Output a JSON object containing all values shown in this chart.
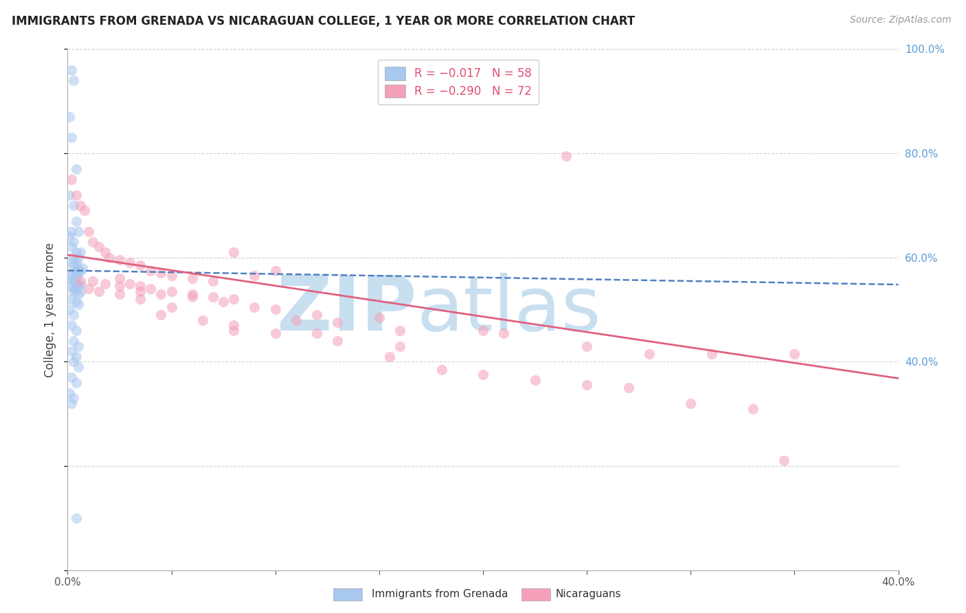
{
  "title": "IMMIGRANTS FROM GRENADA VS NICARAGUAN COLLEGE, 1 YEAR OR MORE CORRELATION CHART",
  "source": "Source: ZipAtlas.com",
  "ylabel": "College, 1 year or more",
  "x_min": 0.0,
  "x_max": 0.4,
  "y_min": 0.0,
  "y_max": 1.0,
  "blue_color": "#a8c8f0",
  "pink_color": "#f4a0b8",
  "blue_line_color": "#5080c0",
  "pink_line_color": "#e06080",
  "blue_scatter_x": [
    0.002,
    0.003,
    0.001,
    0.002,
    0.004,
    0.001,
    0.003,
    0.004,
    0.005,
    0.002,
    0.001,
    0.003,
    0.002,
    0.004,
    0.006,
    0.003,
    0.005,
    0.002,
    0.004,
    0.003,
    0.005,
    0.007,
    0.004,
    0.006,
    0.003,
    0.005,
    0.002,
    0.004,
    0.001,
    0.003,
    0.006,
    0.004,
    0.005,
    0.002,
    0.003,
    0.004,
    0.006,
    0.003,
    0.005,
    0.002,
    0.004,
    0.005,
    0.001,
    0.003,
    0.002,
    0.004,
    0.003,
    0.005,
    0.002,
    0.004,
    0.003,
    0.005,
    0.002,
    0.004,
    0.001,
    0.003,
    0.002,
    0.004
  ],
  "blue_scatter_y": [
    0.96,
    0.94,
    0.87,
    0.83,
    0.77,
    0.72,
    0.7,
    0.67,
    0.65,
    0.65,
    0.64,
    0.63,
    0.62,
    0.61,
    0.61,
    0.6,
    0.6,
    0.59,
    0.59,
    0.585,
    0.58,
    0.58,
    0.575,
    0.575,
    0.57,
    0.57,
    0.565,
    0.565,
    0.56,
    0.555,
    0.55,
    0.55,
    0.545,
    0.545,
    0.54,
    0.54,
    0.535,
    0.535,
    0.53,
    0.52,
    0.515,
    0.51,
    0.5,
    0.49,
    0.47,
    0.46,
    0.44,
    0.43,
    0.42,
    0.41,
    0.4,
    0.39,
    0.37,
    0.36,
    0.34,
    0.33,
    0.32,
    0.1
  ],
  "pink_scatter_x": [
    0.002,
    0.004,
    0.006,
    0.008,
    0.01,
    0.012,
    0.015,
    0.018,
    0.02,
    0.025,
    0.03,
    0.035,
    0.04,
    0.045,
    0.05,
    0.06,
    0.07,
    0.08,
    0.09,
    0.1,
    0.025,
    0.03,
    0.035,
    0.04,
    0.05,
    0.06,
    0.07,
    0.08,
    0.1,
    0.12,
    0.15,
    0.012,
    0.018,
    0.025,
    0.035,
    0.045,
    0.06,
    0.075,
    0.09,
    0.11,
    0.13,
    0.16,
    0.006,
    0.01,
    0.015,
    0.025,
    0.035,
    0.05,
    0.065,
    0.08,
    0.1,
    0.13,
    0.155,
    0.18,
    0.2,
    0.225,
    0.25,
    0.27,
    0.3,
    0.33,
    0.21,
    0.28,
    0.24,
    0.35,
    0.045,
    0.08,
    0.12,
    0.16,
    0.2,
    0.25,
    0.31,
    0.345
  ],
  "pink_scatter_y": [
    0.75,
    0.72,
    0.7,
    0.69,
    0.65,
    0.63,
    0.62,
    0.61,
    0.6,
    0.595,
    0.59,
    0.585,
    0.575,
    0.57,
    0.565,
    0.56,
    0.555,
    0.61,
    0.565,
    0.575,
    0.56,
    0.55,
    0.545,
    0.54,
    0.535,
    0.53,
    0.525,
    0.52,
    0.5,
    0.49,
    0.485,
    0.555,
    0.55,
    0.545,
    0.535,
    0.53,
    0.525,
    0.515,
    0.505,
    0.48,
    0.475,
    0.46,
    0.555,
    0.54,
    0.535,
    0.53,
    0.52,
    0.505,
    0.48,
    0.47,
    0.455,
    0.44,
    0.41,
    0.385,
    0.375,
    0.365,
    0.355,
    0.35,
    0.32,
    0.31,
    0.455,
    0.415,
    0.795,
    0.415,
    0.49,
    0.46,
    0.455,
    0.43,
    0.46,
    0.43,
    0.415,
    0.21
  ],
  "blue_line_x": [
    0.0,
    0.4
  ],
  "blue_line_y": [
    0.575,
    0.548
  ],
  "pink_line_x": [
    0.0,
    0.4
  ],
  "pink_line_y": [
    0.605,
    0.368
  ],
  "ytick_positions": [
    0.0,
    0.2,
    0.4,
    0.6,
    0.8,
    1.0
  ],
  "ytick_labels_right": [
    "",
    "",
    "40.0%",
    "60.0%",
    "80.0%",
    "100.0%"
  ],
  "xtick_positions": [
    0.0,
    0.05,
    0.1,
    0.15,
    0.2,
    0.25,
    0.3,
    0.35,
    0.4
  ],
  "xtick_labels": [
    "0.0%",
    "",
    "",
    "",
    "",
    "",
    "",
    "",
    "40.0%"
  ],
  "watermark_zip": "ZIP",
  "watermark_atlas": "atlas",
  "watermark_color_zip": "#c8dff0",
  "watermark_color_atlas": "#c8dff0",
  "grid_color": "#d0d0d0",
  "background_color": "#ffffff",
  "legend_blue_text": "R = −0.017   N = 58",
  "legend_pink_text": "R = −0.290   N = 72",
  "legend_text_color": "#e05070",
  "right_axis_color": "#5b9bd5",
  "bottom_legend_blue": "Immigrants from Grenada",
  "bottom_legend_pink": "Nicaraguans",
  "bottom_legend_color_blue": "#333333",
  "bottom_legend_color_pink": "#333333"
}
